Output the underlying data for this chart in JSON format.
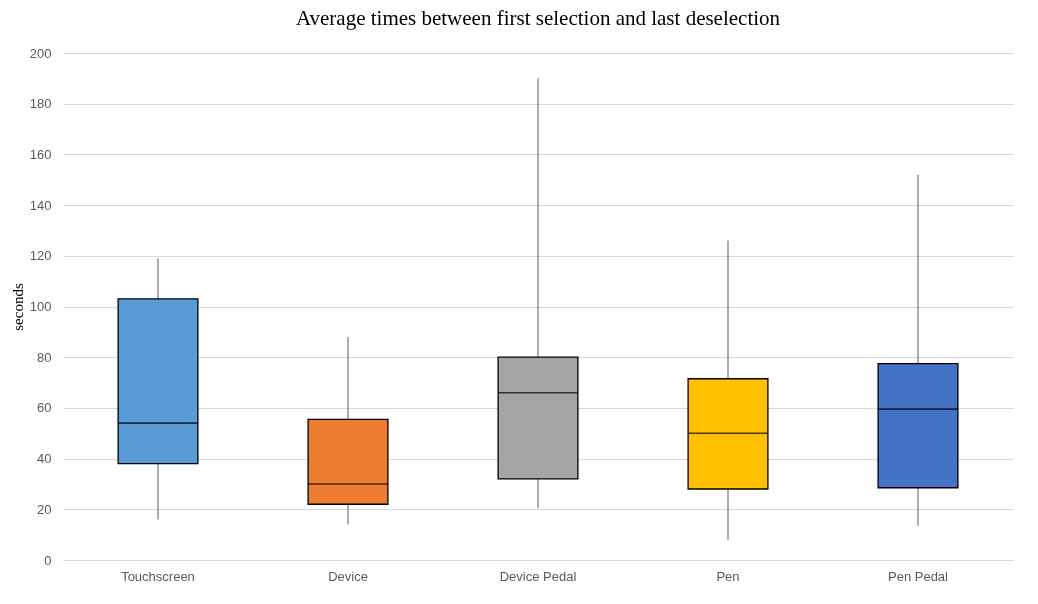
{
  "chart_data": {
    "type": "box",
    "title": "Average times between first selection and last deselection",
    "ylabel": "seconds",
    "categories": [
      "Touchscreen",
      "Device",
      "Device Pedal",
      "Pen",
      "Pen Pedal"
    ],
    "colors": [
      "#5b9bd5",
      "#ed7d31",
      "#a5a5a5",
      "#ffc000",
      "#4472c4"
    ],
    "boxes": [
      {
        "low": 16,
        "q1": 38,
        "median": 54,
        "q3": 103,
        "high": 119
      },
      {
        "low": 14,
        "q1": 22,
        "median": 30,
        "q3": 55.5,
        "high": 88
      },
      {
        "low": 20.5,
        "q1": 32,
        "median": 66,
        "q3": 80,
        "high": 190
      },
      {
        "low": 8,
        "q1": 28,
        "median": 50,
        "q3": 71.5,
        "high": 126
      },
      {
        "low": 13.5,
        "q1": 28.5,
        "median": 59.5,
        "q3": 77.5,
        "high": 152
      }
    ],
    "ylim": [
      0,
      200
    ],
    "yticks": [
      0,
      20,
      40,
      60,
      80,
      100,
      120,
      140,
      160,
      180,
      200
    ],
    "grid": "y",
    "legend": false
  }
}
